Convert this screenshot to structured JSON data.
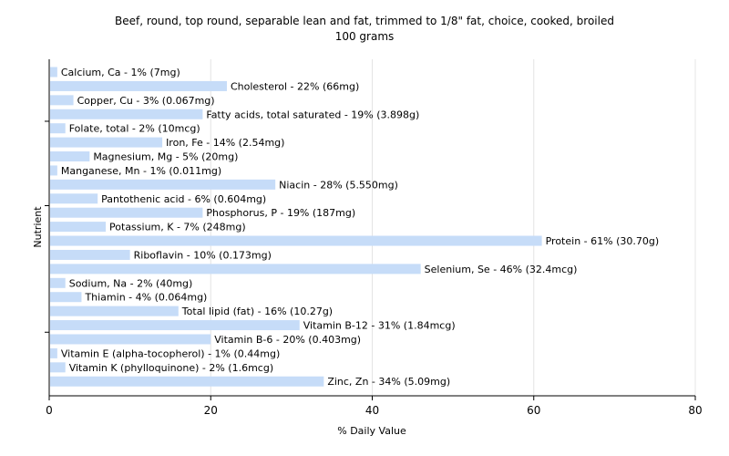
{
  "chart_data": {
    "type": "bar",
    "orientation": "horizontal",
    "title": "Beef, round, top round, separable lean and fat, trimmed to 1/8\" fat, choice, cooked, broiled",
    "subtitle": "100 grams",
    "xlabel": "% Daily Value",
    "ylabel": "Nutrient",
    "xlim": [
      0,
      80
    ],
    "xticks": [
      "0",
      "20",
      "40",
      "60",
      "80"
    ],
    "grid": true,
    "bar_color": "#c6dcf8",
    "categories": [
      "Calcium, Ca",
      "Cholesterol",
      "Copper, Cu",
      "Fatty acids, total saturated",
      "Folate, total",
      "Iron, Fe",
      "Magnesium, Mg",
      "Manganese, Mn",
      "Niacin",
      "Pantothenic acid",
      "Phosphorus, P",
      "Potassium, K",
      "Protein",
      "Riboflavin",
      "Selenium, Se",
      "Sodium, Na",
      "Thiamin",
      "Total lipid (fat)",
      "Vitamin B-12",
      "Vitamin B-6",
      "Vitamin E (alpha-tocopherol)",
      "Vitamin K (phylloquinone)",
      "Zinc, Zn"
    ],
    "values": [
      1,
      22,
      3,
      19,
      2,
      14,
      5,
      1,
      28,
      6,
      19,
      7,
      61,
      10,
      46,
      2,
      4,
      16,
      31,
      20,
      1,
      2,
      34
    ],
    "labels": [
      "Calcium, Ca - 1% (7mg)",
      "Cholesterol - 22% (66mg)",
      "Copper, Cu - 3% (0.067mg)",
      "Fatty acids, total saturated - 19% (3.898g)",
      "Folate, total - 2% (10mcg)",
      "Iron, Fe - 14% (2.54mg)",
      "Magnesium, Mg - 5% (20mg)",
      "Manganese, Mn - 1% (0.011mg)",
      "Niacin - 28% (5.550mg)",
      "Pantothenic acid - 6% (0.604mg)",
      "Phosphorus, P - 19% (187mg)",
      "Potassium, K - 7% (248mg)",
      "Protein - 61% (30.70g)",
      "Riboflavin - 10% (0.173mg)",
      "Selenium, Se - 46% (32.4mcg)",
      "Sodium, Na - 2% (40mg)",
      "Thiamin - 4% (0.064mg)",
      "Total lipid (fat) - 16% (10.27g)",
      "Vitamin B-12 - 31% (1.84mcg)",
      "Vitamin B-6 - 20% (0.403mg)",
      "Vitamin E (alpha-tocopherol) - 1% (0.44mg)",
      "Vitamin K (phylloquinone) - 2% (1.6mcg)",
      "Zinc, Zn - 34% (5.09mg)"
    ]
  }
}
